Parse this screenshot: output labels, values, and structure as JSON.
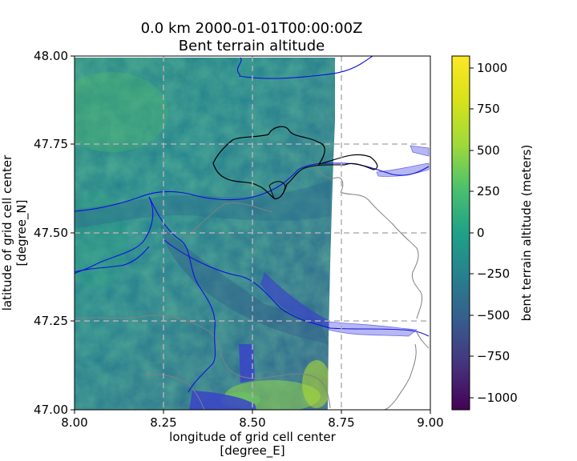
{
  "figure": {
    "title_line1": "0.0 km 2000-01-01T00:00:00Z",
    "title_line2": "Bent terrain altitude"
  },
  "axes": {
    "xlabel_line1": "longitude of grid cell center",
    "xlabel_line2": "[degree_E]",
    "ylabel_line1": "latitude of grid cell center",
    "ylabel_line2": "[degree_N]",
    "xticks": [
      "8.00",
      "8.25",
      "8.50",
      "8.75",
      "9.00"
    ],
    "yticks": [
      "48.00",
      "47.75",
      "47.50",
      "47.25",
      "47.00"
    ],
    "xlim": [
      8.0,
      9.0
    ],
    "ylim": [
      47.0,
      48.0
    ],
    "grid": "dashed gray at 0.25 degree intervals"
  },
  "colorbar": {
    "label": "bent terrain altitude (meters)",
    "ticks": [
      "1000",
      "750",
      "500",
      "250",
      "0",
      "−250",
      "−500",
      "−750",
      "−1000"
    ],
    "range": [
      -1080,
      1080
    ],
    "colormap": "viridis"
  },
  "colors": {
    "rivers": "#1010e0",
    "lakes": "#3030e0",
    "borders": "#808080",
    "highlight_region": "#000000",
    "grid": "#b0b0b8"
  }
}
